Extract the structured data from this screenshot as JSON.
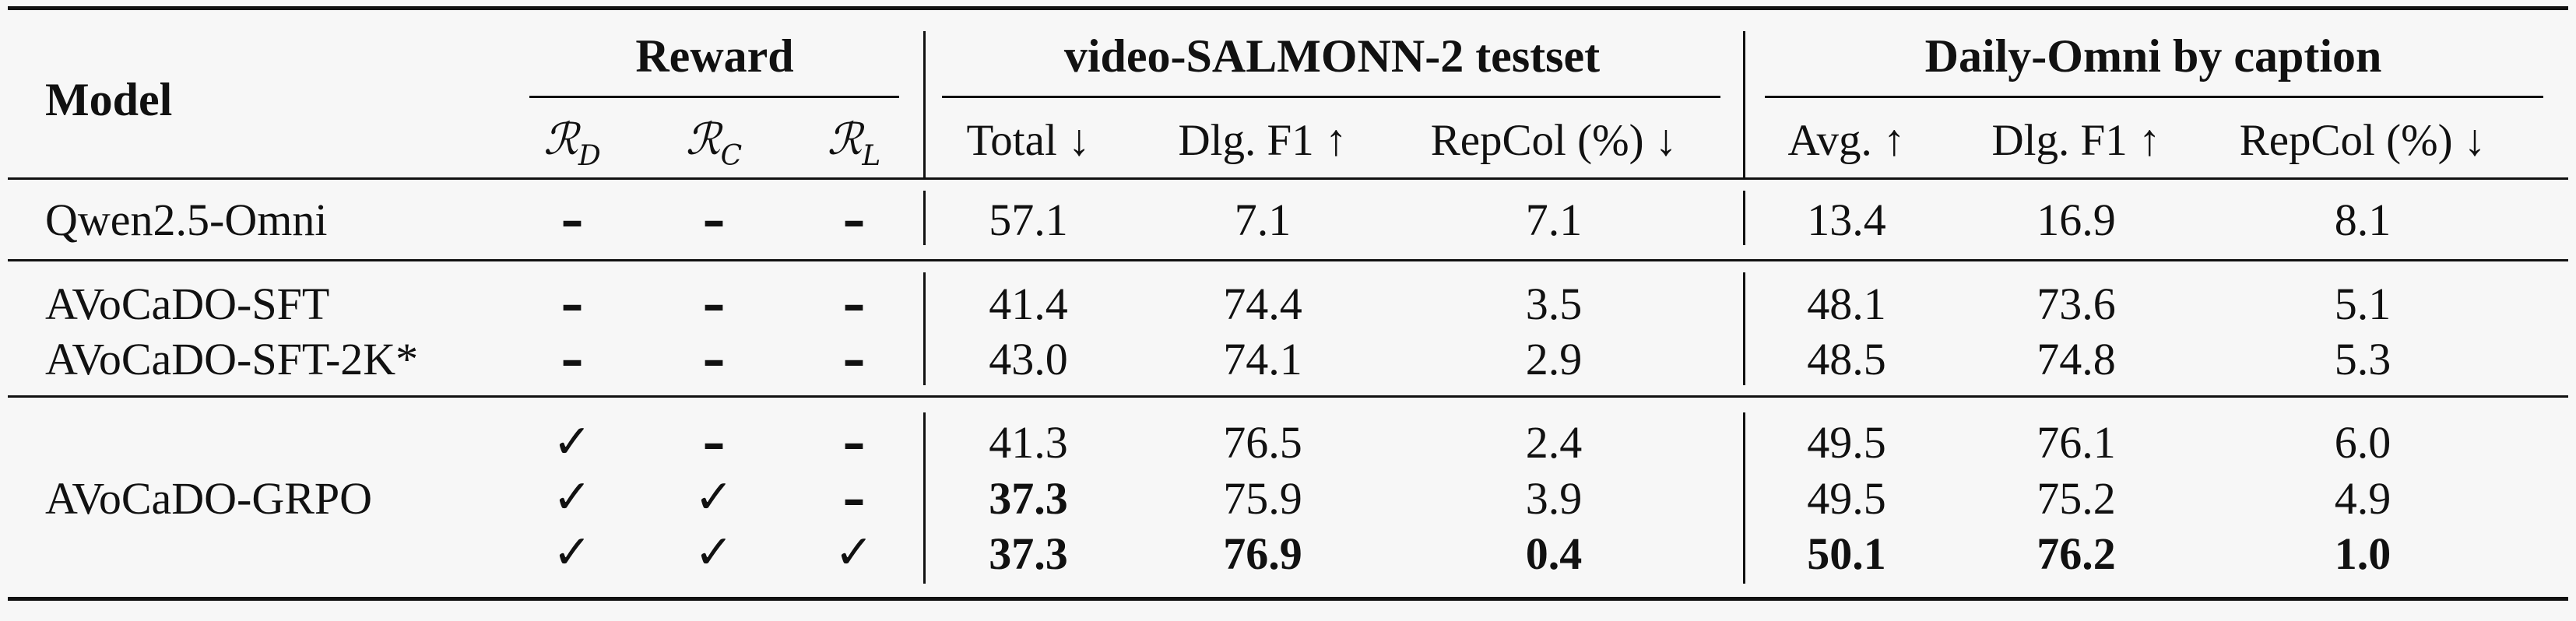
{
  "table": {
    "model_header": "Model",
    "groups": [
      {
        "label": "Reward"
      },
      {
        "label": "video-SALMONN-2 testset"
      },
      {
        "label": "Daily-Omni by caption"
      }
    ],
    "reward_subheaders": [
      {
        "sym": "ℛ",
        "sub": "D"
      },
      {
        "sym": "ℛ",
        "sub": "C"
      },
      {
        "sym": "ℛ",
        "sub": "L"
      }
    ],
    "metric_subheaders": [
      "Total ↓",
      "Dlg. F1 ↑",
      "RepCol (%) ↓",
      "Avg. ↑",
      "Dlg. F1 ↑",
      "RepCol (%) ↓"
    ],
    "check_glyph": "✓",
    "dash_glyph": "–",
    "rows": [
      {
        "model": "Qwen2.5-Omni",
        "rd": "–",
        "rc": "–",
        "rl": "–",
        "vals": [
          "57.1",
          "7.1",
          "7.1",
          "13.4",
          "16.9",
          "8.1"
        ],
        "bold": [
          false,
          false,
          false,
          false,
          false,
          false
        ]
      },
      {
        "model": "AVoCaDO-SFT",
        "rd": "–",
        "rc": "–",
        "rl": "–",
        "vals": [
          "41.4",
          "74.4",
          "3.5",
          "48.1",
          "73.6",
          "5.1"
        ],
        "bold": [
          false,
          false,
          false,
          false,
          false,
          false
        ]
      },
      {
        "model": "AVoCaDO-SFT-2K*",
        "rd": "–",
        "rc": "–",
        "rl": "–",
        "vals": [
          "43.0",
          "74.1",
          "2.9",
          "48.5",
          "74.8",
          "5.3"
        ],
        "bold": [
          false,
          false,
          false,
          false,
          false,
          false
        ]
      },
      {
        "model": "",
        "rd": "✓",
        "rc": "–",
        "rl": "–",
        "vals": [
          "41.3",
          "76.5",
          "2.4",
          "49.5",
          "76.1",
          "6.0"
        ],
        "bold": [
          false,
          false,
          false,
          false,
          false,
          false
        ]
      },
      {
        "model": "AVoCaDO-GRPO",
        "rd": "✓",
        "rc": "✓",
        "rl": "–",
        "vals": [
          "37.3",
          "75.9",
          "3.9",
          "49.5",
          "75.2",
          "4.9"
        ],
        "bold": [
          true,
          false,
          false,
          false,
          false,
          false
        ]
      },
      {
        "model": "",
        "rd": "✓",
        "rc": "✓",
        "rl": "✓",
        "vals": [
          "37.3",
          "76.9",
          "0.4",
          "50.1",
          "76.2",
          "1.0"
        ],
        "bold": [
          true,
          true,
          true,
          true,
          true,
          true
        ]
      }
    ]
  }
}
